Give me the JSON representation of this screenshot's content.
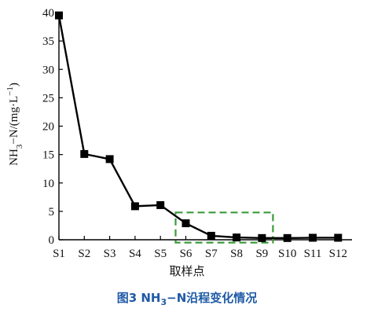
{
  "chart_data": {
    "type": "line",
    "categories": [
      "S1",
      "S2",
      "S3",
      "S4",
      "S5",
      "S6",
      "S7",
      "S8",
      "S9",
      "S10",
      "S11",
      "S12"
    ],
    "series": [
      {
        "values": [
          39.5,
          15.1,
          14.2,
          5.9,
          6.1,
          2.9,
          0.7,
          0.4,
          0.3,
          0.3,
          0.35,
          0.35
        ]
      }
    ],
    "ylim": [
      0,
      40
    ],
    "yticks": [
      0,
      5,
      10,
      15,
      20,
      25,
      30,
      35,
      40
    ],
    "ylabel": {
      "main": "NH",
      "sub": "3",
      "rest": "−N/(mg·L",
      "sup": "−1",
      "end": ")"
    },
    "xlabel": "取样点",
    "highlight_box": {
      "x_from": "S6",
      "x_to": "S9",
      "y_from": -0.5,
      "y_to": 4.8,
      "color": "#3a9a3a"
    },
    "colors": {
      "line": "#000000",
      "marker": "#000000"
    }
  },
  "caption": {
    "prefix": "图3 NH",
    "sub": "3",
    "suffix": "−N沿程变化情况"
  }
}
